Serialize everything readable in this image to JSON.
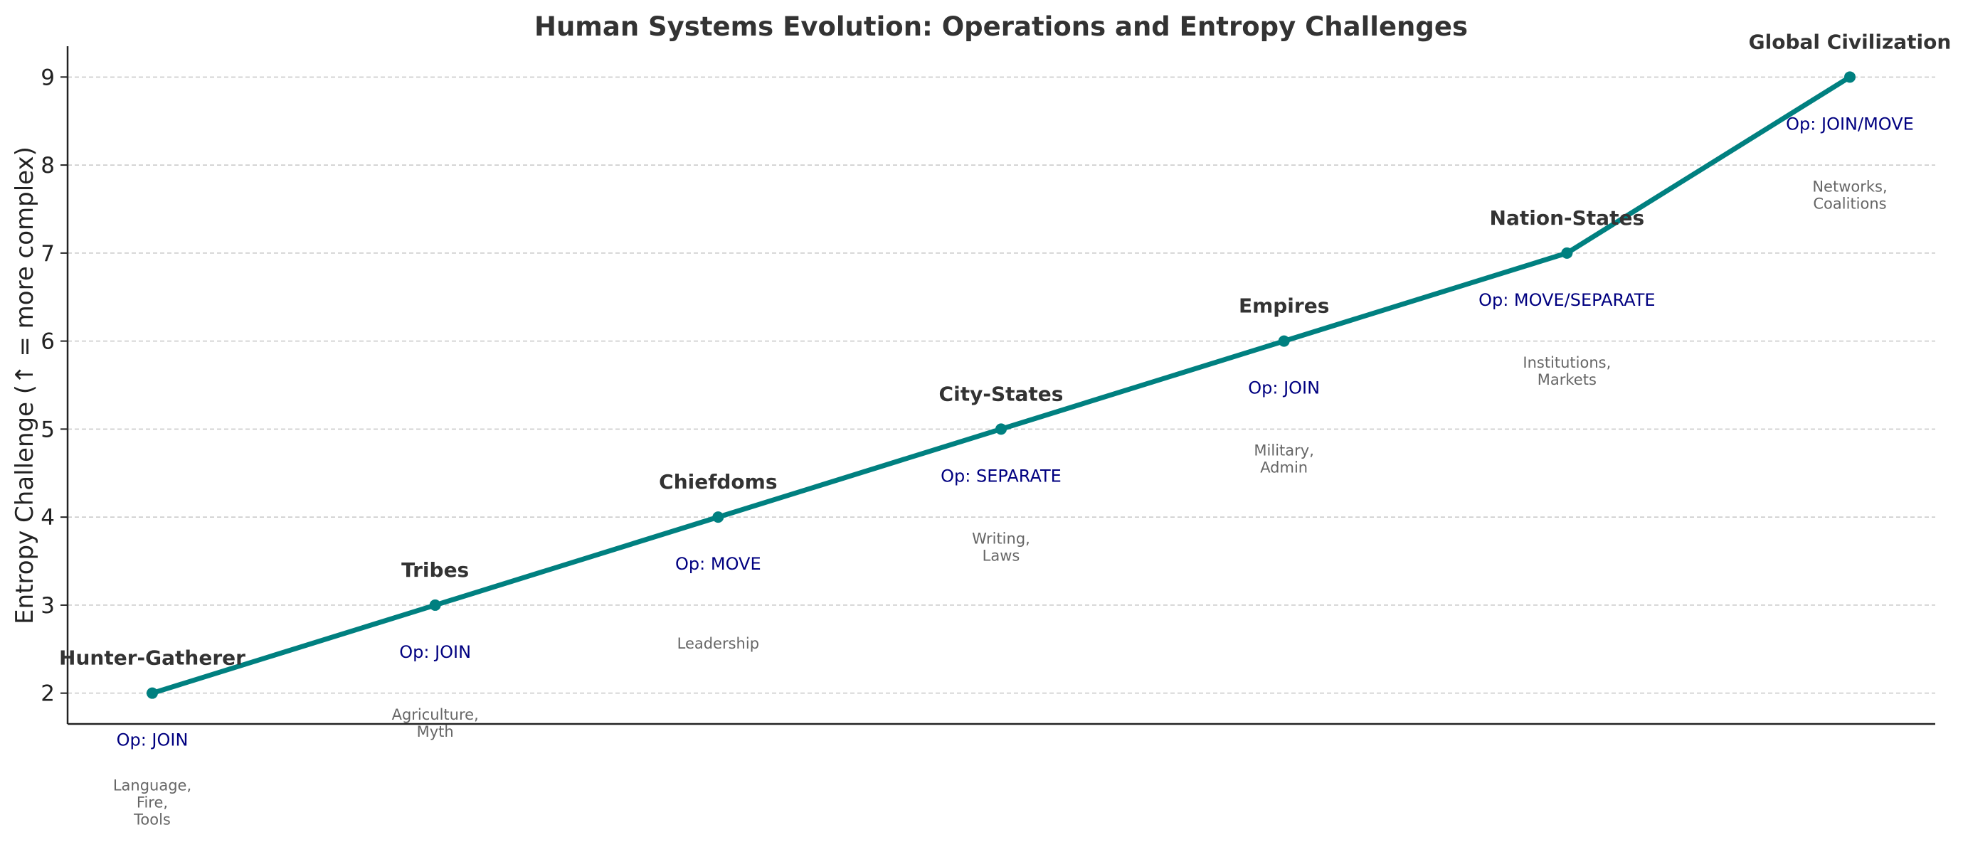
{
  "chart_data": {
    "type": "line",
    "title": "Human Systems Evolution: Operations and Entropy Challenges",
    "xlabel": "",
    "ylabel": "Entropy Challenge (↑ = more complex)",
    "ylim": [
      1.65,
      9.35
    ],
    "yticks": [
      2,
      3,
      4,
      5,
      6,
      7,
      8,
      9
    ],
    "grid": "horizontal, dashed",
    "x": [
      0,
      1,
      2,
      3,
      4,
      5,
      6
    ],
    "values": [
      2,
      3,
      4,
      5,
      6,
      7,
      9
    ],
    "points": [
      {
        "label": "Hunter-Gatherer",
        "op": "Op: JOIN",
        "notes": [
          "Language,",
          "Fire,",
          "Tools"
        ]
      },
      {
        "label": "Tribes",
        "op": "Op: JOIN",
        "notes": [
          "Agriculture,",
          "Myth"
        ]
      },
      {
        "label": "Chiefdoms",
        "op": "Op: MOVE",
        "notes": [
          "Leadership"
        ]
      },
      {
        "label": "City-States",
        "op": "Op: SEPARATE",
        "notes": [
          "Writing,",
          "Laws"
        ]
      },
      {
        "label": "Empires",
        "op": "Op: JOIN",
        "notes": [
          "Military,",
          "Admin"
        ]
      },
      {
        "label": "Nation-States",
        "op": "Op: MOVE/SEPARATE",
        "notes": [
          "Institutions,",
          "Markets"
        ]
      },
      {
        "label": "Global Civilization",
        "op": "Op: JOIN/MOVE",
        "notes": [
          "Networks,",
          "Coalitions"
        ]
      }
    ],
    "colors": {
      "line": "#008080",
      "op_text": "#000080",
      "note_text": "#666666",
      "stage_text": "#333333",
      "grid": "#c8c8c8"
    }
  }
}
